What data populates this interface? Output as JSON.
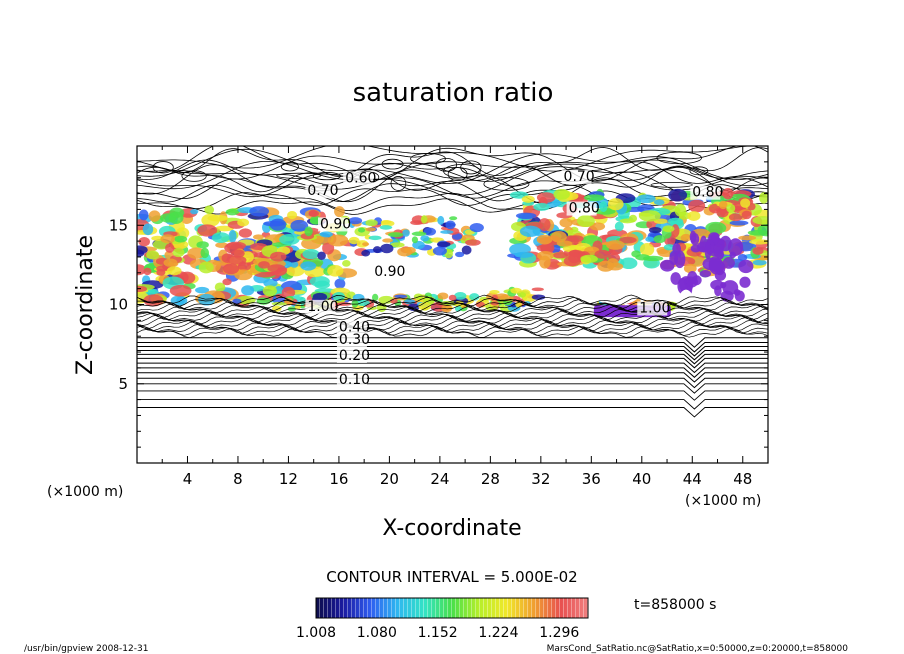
{
  "chart_data": {
    "type": "contour",
    "title": "saturation ratio",
    "xlabel": "X-coordinate",
    "ylabel": "Z-coordinate",
    "x_unit": "(×1000 m)",
    "y_unit": "(×1000 m)",
    "xlim": [
      0,
      50
    ],
    "ylim": [
      0,
      20
    ],
    "x_ticks": [
      "4",
      "8",
      "12",
      "16",
      "20",
      "24",
      "28",
      "32",
      "36",
      "40",
      "44",
      "48"
    ],
    "y_ticks": [
      "5",
      "10",
      "15"
    ],
    "contour_interval": "CONTOUR INTERVAL = 5.000E-02",
    "contour_labels": [
      {
        "text": "0.60",
        "x": 16.5,
        "z": 17.7
      },
      {
        "text": "0.70",
        "x": 13.5,
        "z": 16.9
      },
      {
        "text": "0.70",
        "x": 33.8,
        "z": 17.8
      },
      {
        "text": "0.80",
        "x": 34.2,
        "z": 15.8
      },
      {
        "text": "0.80",
        "x": 44.0,
        "z": 16.8
      },
      {
        "text": "0.90",
        "x": 14.5,
        "z": 14.8
      },
      {
        "text": "0.90",
        "x": 18.8,
        "z": 11.8
      },
      {
        "text": "1.00",
        "x": 13.5,
        "z": 9.6
      },
      {
        "text": "1.00",
        "x": 39.8,
        "z": 9.5
      },
      {
        "text": "0.40",
        "x": 16.0,
        "z": 8.3
      },
      {
        "text": "0.30",
        "x": 16.0,
        "z": 7.5
      },
      {
        "text": "0.20",
        "x": 16.0,
        "z": 6.5
      },
      {
        "text": "0.10",
        "x": 16.0,
        "z": 5.0
      }
    ],
    "colorbar": {
      "ticks": [
        "1.008",
        "1.080",
        "1.152",
        "1.224",
        "1.296"
      ],
      "min": 1.008,
      "max": 1.33,
      "colors": [
        "#0d0d4a",
        "#1a1aa0",
        "#2f5df0",
        "#2fb7f0",
        "#33e3c4",
        "#49e04a",
        "#b7ef2a",
        "#f0e82a",
        "#f0a030",
        "#e85050",
        "#f08080"
      ]
    },
    "time_label": "t=858000 s"
  },
  "footer": {
    "left": "/usr/bin/gpview   2008-12-31",
    "right": "MarsCond_SatRatio.nc@SatRatio,x=0:50000,z=0:20000,t=858000"
  }
}
